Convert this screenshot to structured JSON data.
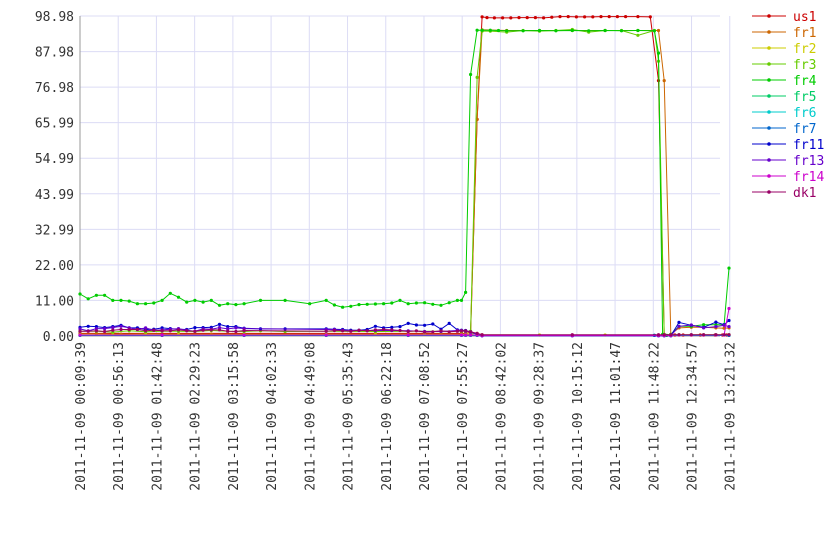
{
  "chart_data": {
    "type": "line",
    "title": "",
    "xlabel": "",
    "ylabel": "",
    "ylim": [
      0,
      98.98
    ],
    "xlim": [
      0,
      780
    ],
    "grid": true,
    "legend_position": "right",
    "y_ticks": [
      "0.00",
      "11.00",
      "22.00",
      "32.99",
      "43.99",
      "54.99",
      "65.99",
      "76.98",
      "87.98",
      "98.98"
    ],
    "x_ticks": [
      "2011-11-09 00:09:39",
      "2011-11-09 00:56:13",
      "2011-11-09 01:42:48",
      "2011-11-09 02:29:23",
      "2011-11-09 03:15:58",
      "2011-11-09 04:02:33",
      "2011-11-09 04:49:08",
      "2011-11-09 05:35:43",
      "2011-11-09 06:22:18",
      "2011-11-09 07:08:52",
      "2011-11-09 07:55:27",
      "2011-11-09 08:42:02",
      "2011-11-09 09:28:37",
      "2011-11-09 10:15:12",
      "2011-11-09 11:01:47",
      "2011-11-09 11:48:22",
      "2011-11-09 12:34:57",
      "2011-11-09 13:21:32"
    ],
    "x_tick_minutes": [
      0,
      46.58,
      93.15,
      139.73,
      186.32,
      232.9,
      279.48,
      326.07,
      372.65,
      419.22,
      465.8,
      512.38,
      558.97,
      605.55,
      652.13,
      698.72,
      745.3,
      791.88
    ],
    "series": [
      {
        "name": "us1",
        "color": "#cc0000",
        "x": [
          0,
          465,
          470,
          476,
          484,
          490,
          496,
          505,
          515,
          525,
          535,
          545,
          555,
          565,
          575,
          585,
          595,
          605,
          615,
          625,
          635,
          645,
          655,
          665,
          680,
          695,
          705,
          712,
          720,
          725,
          735,
          745,
          756,
          760,
          774,
          783,
          788,
          791
        ],
        "y": [
          0.8,
          0.8,
          0.8,
          1.2,
          67,
          98.7,
          98.5,
          98.4,
          98.4,
          98.4,
          98.5,
          98.5,
          98.5,
          98.4,
          98.6,
          98.8,
          98.8,
          98.7,
          98.7,
          98.7,
          98.8,
          98.8,
          98.8,
          98.8,
          98.8,
          98.7,
          79,
          0.5,
          0.3,
          0.3,
          0.3,
          0.3,
          0.3,
          0.3,
          0.3,
          0.3,
          0.3,
          0.3
        ]
      },
      {
        "name": "fr1",
        "color": "#cc6600",
        "x": [
          0,
          20,
          50,
          80,
          120,
          160,
          200,
          300,
          360,
          400,
          440,
          465,
          470,
          476,
          484,
          490,
          520,
          560,
          600,
          640,
          680,
          705,
          712,
          720,
          730,
          745,
          760,
          775,
          785,
          791
        ],
        "y": [
          0.7,
          0.7,
          0.6,
          0.7,
          0.6,
          0.6,
          0.6,
          0.5,
          0.6,
          0.6,
          0.6,
          0.6,
          0.8,
          1,
          67,
          94.7,
          94.5,
          94.5,
          94.5,
          94.5,
          94.5,
          94.5,
          79,
          0.5,
          2.5,
          2.7,
          2.7,
          2.5,
          2.4,
          2.5
        ]
      },
      {
        "name": "fr2",
        "color": "#cccc00",
        "x": [
          0,
          40,
          80,
          120,
          200,
          300,
          360,
          420,
          465,
          470,
          476,
          484,
          490,
          560,
          640,
          705,
          712,
          720,
          791
        ],
        "y": [
          0.4,
          0.4,
          0.4,
          0.4,
          0.4,
          0.4,
          0.4,
          0.4,
          0.4,
          0.4,
          0.6,
          0.8,
          0.4,
          0.3,
          0.3,
          0.3,
          0.3,
          0.3,
          0.3
        ]
      },
      {
        "name": "fr3",
        "color": "#66cc00",
        "x": [
          0,
          20,
          40,
          60,
          80,
          100,
          120,
          140,
          160,
          180,
          200,
          220,
          250,
          300,
          360,
          400,
          440,
          465,
          470,
          476,
          484,
          490,
          500,
          520,
          540,
          560,
          580,
          600,
          620,
          640,
          660,
          680,
          700,
          705,
          712,
          720,
          730,
          745,
          760,
          775,
          791
        ],
        "y": [
          1.5,
          1.5,
          1.2,
          1.6,
          1.3,
          1.5,
          1.5,
          1.4,
          1.7,
          1.5,
          1.4,
          1.6,
          1.4,
          1.5,
          1.4,
          1.5,
          1.5,
          1.5,
          1.5,
          1.5,
          80,
          94.3,
          94.3,
          94,
          94.5,
          94.3,
          94.5,
          94.8,
          94,
          94.5,
          94.5,
          93,
          94.5,
          85,
          0.4,
          0.4,
          0.4,
          0.4,
          0.4,
          0.4,
          0.4
        ]
      },
      {
        "name": "fr4",
        "color": "#00cc00",
        "x": [
          0,
          10,
          20,
          30,
          40,
          50,
          60,
          70,
          80,
          90,
          100,
          110,
          120,
          130,
          140,
          150,
          160,
          170,
          180,
          190,
          200,
          220,
          250,
          280,
          300,
          310,
          320,
          330,
          340,
          350,
          360,
          370,
          380,
          390,
          400,
          410,
          420,
          430,
          440,
          450,
          460,
          465,
          470,
          476,
          484,
          490,
          500,
          510,
          520,
          540,
          560,
          580,
          600,
          620,
          640,
          660,
          680,
          700,
          705,
          710,
          715,
          720,
          730,
          745,
          760,
          775,
          785,
          791
        ],
        "y": [
          13,
          11.5,
          12.6,
          12.6,
          11,
          11,
          10.8,
          10,
          10,
          10.2,
          11,
          13.2,
          12,
          10.5,
          11,
          10.5,
          11,
          9.5,
          10,
          9.7,
          10,
          11,
          11,
          10,
          11,
          9.6,
          8.9,
          9.2,
          9.7,
          9.8,
          9.9,
          10,
          10.2,
          11,
          10,
          10.2,
          10.3,
          9.8,
          9.5,
          10.3,
          11,
          11,
          13.5,
          80.9,
          94.6,
          94.6,
          94.6,
          94.5,
          94.4,
          94.4,
          94.5,
          94.4,
          94.5,
          94.4,
          94.5,
          94.4,
          94.5,
          94.4,
          87.5,
          0.5,
          0.2,
          0.5,
          3,
          3,
          3.5,
          3.5,
          3.5,
          21
        ]
      },
      {
        "name": "fr5",
        "color": "#00cc66",
        "x": [
          0,
          100,
          200,
          300,
          400,
          465,
          470,
          476,
          484,
          490,
          600,
          700,
          705,
          712,
          720,
          791
        ],
        "y": [
          0.2,
          0.2,
          0.2,
          0.2,
          0.2,
          0.2,
          0.2,
          0.2,
          0.2,
          0.2,
          0.2,
          0.2,
          0.2,
          0.2,
          0.2,
          0.2
        ]
      },
      {
        "name": "fr6",
        "color": "#00cccc",
        "x": [
          0,
          100,
          200,
          300,
          400,
          465,
          470,
          476,
          484,
          490,
          600,
          700,
          705,
          712,
          720,
          791
        ],
        "y": [
          0.2,
          0.2,
          0.2,
          0.2,
          0.2,
          0.2,
          0.2,
          0.2,
          0.2,
          0.2,
          0.2,
          0.2,
          0.2,
          0.2,
          0.2,
          0.2
        ]
      },
      {
        "name": "fr7",
        "color": "#0066cc",
        "x": [
          0,
          100,
          200,
          300,
          400,
          465,
          470,
          476,
          484,
          490,
          600,
          700,
          705,
          712,
          720,
          791
        ],
        "y": [
          0.2,
          0.2,
          0.2,
          0.2,
          0.2,
          0.2,
          0.2,
          0.2,
          0.2,
          0.2,
          0.2,
          0.2,
          0.2,
          0.2,
          0.2,
          0.2
        ]
      },
      {
        "name": "fr11",
        "color": "#0000cc",
        "x": [
          0,
          10,
          20,
          30,
          40,
          50,
          60,
          70,
          80,
          90,
          100,
          110,
          120,
          130,
          140,
          150,
          160,
          170,
          180,
          190,
          200,
          220,
          250,
          300,
          310,
          320,
          330,
          340,
          350,
          360,
          370,
          380,
          390,
          400,
          410,
          420,
          430,
          440,
          450,
          460,
          465,
          470,
          476,
          484,
          490,
          600,
          705,
          712,
          720,
          730,
          745,
          760,
          775,
          785,
          791
        ],
        "y": [
          2.7,
          3,
          2.9,
          2.6,
          2.9,
          3.3,
          2.5,
          2.5,
          2,
          2.1,
          2.5,
          2.3,
          2.1,
          2,
          2.6,
          2.6,
          2.7,
          3.6,
          2.9,
          2.9,
          2.4,
          2.2,
          2.2,
          2.2,
          2.1,
          2,
          1.8,
          1.8,
          2,
          3,
          2.5,
          2.7,
          2.9,
          3.9,
          3.4,
          3.3,
          3.7,
          2.1,
          3.9,
          1.9,
          1.8,
          1.7,
          1.2,
          0.5,
          0.1,
          0.1,
          0.1,
          0.1,
          0.1,
          4.2,
          3.3,
          2.7,
          4.3,
          3.5,
          4.8
        ]
      },
      {
        "name": "fr13",
        "color": "#6600cc",
        "x": [
          0,
          10,
          20,
          30,
          40,
          50,
          60,
          70,
          80,
          90,
          100,
          110,
          120,
          130,
          140,
          150,
          160,
          170,
          180,
          190,
          200,
          300,
          310,
          320,
          340,
          360,
          380,
          400,
          420,
          440,
          460,
          465,
          470,
          476,
          484,
          490,
          600,
          705,
          712,
          720,
          730,
          745,
          760,
          775,
          785,
          791
        ],
        "y": [
          2.2,
          1.6,
          2.3,
          2.3,
          2.6,
          3,
          2.5,
          2,
          2.5,
          1.8,
          1.9,
          2.1,
          2.3,
          1.8,
          1.5,
          2.2,
          2.1,
          2.6,
          2.2,
          2.5,
          2.3,
          2,
          2,
          1.8,
          1.7,
          1.7,
          1.7,
          1.6,
          1.4,
          1.4,
          1.7,
          1.7,
          1.5,
          1.3,
          0.5,
          0.1,
          0.1,
          0.1,
          0.1,
          0.1,
          3,
          3.4,
          2.5,
          2.9,
          3.3,
          2.9
        ]
      },
      {
        "name": "fr14",
        "color": "#cc00cc",
        "x": [
          0,
          100,
          200,
          300,
          400,
          465,
          470,
          476,
          484,
          490,
          600,
          705,
          712,
          720,
          730,
          745,
          760,
          775,
          785,
          791
        ],
        "y": [
          0.3,
          0.3,
          0.3,
          0.3,
          0.3,
          0.3,
          0.3,
          0.3,
          0.3,
          0.2,
          0.2,
          0.2,
          0.2,
          0.2,
          0.3,
          0.3,
          0.3,
          0.3,
          0.3,
          8.5
        ]
      },
      {
        "name": "dk1",
        "color": "#990066",
        "x": [
          0,
          10,
          20,
          30,
          40,
          50,
          60,
          70,
          80,
          90,
          100,
          110,
          120,
          130,
          140,
          150,
          160,
          170,
          180,
          190,
          200,
          300,
          310,
          320,
          330,
          340,
          350,
          360,
          370,
          380,
          390,
          400,
          410,
          420,
          430,
          440,
          450,
          460,
          465,
          470,
          476,
          484,
          490,
          600,
          705,
          712,
          720,
          730,
          745,
          760,
          775,
          785,
          791
        ],
        "y": [
          1.5,
          1.5,
          1.6,
          1.4,
          1.8,
          2,
          2,
          2,
          1.6,
          1.8,
          1.6,
          1.6,
          1.9,
          1.6,
          1.5,
          1.8,
          1.9,
          1.9,
          1.5,
          1.4,
          1.7,
          1.5,
          1.7,
          1.6,
          1.5,
          1.8,
          1.6,
          1.9,
          2,
          1.9,
          1.7,
          1.4,
          1.6,
          1.2,
          1.3,
          1.6,
          1.3,
          1.5,
          1.6,
          1.6,
          1.3,
          0.8,
          0.4,
          0.4,
          0.4,
          0.4,
          0.4,
          0.4,
          0.4,
          0.4,
          0.4,
          0.4,
          0.4
        ]
      }
    ]
  }
}
